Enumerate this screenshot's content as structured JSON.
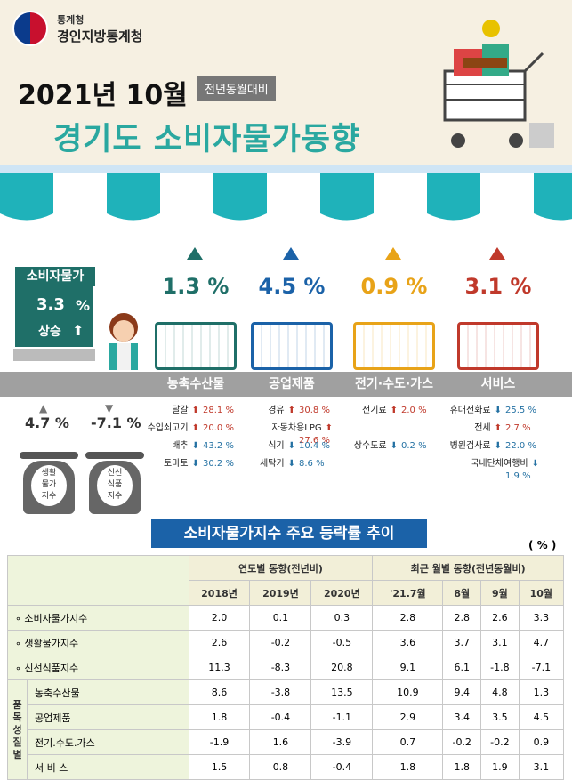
{
  "header": {
    "org_small": "통계청",
    "org_big": "경인지방통계청",
    "period": "2021년 10월",
    "badge": "전년동월대비",
    "title": "경기도 소비자물가동향"
  },
  "cpi": {
    "label": "소비자물가",
    "value": "3.3",
    "unit": "%",
    "direction": "상승"
  },
  "categories": [
    {
      "name": "농축수산물",
      "pct": "1.3 %",
      "color": "#1f6f68",
      "items": [
        [
          "달걀",
          "28.1 %",
          "up"
        ],
        [
          "수입쇠고기",
          "20.0 %",
          "up"
        ],
        [
          "배추",
          "43.2 %",
          "dn"
        ],
        [
          "토마토",
          "30.2 %",
          "dn"
        ]
      ]
    },
    {
      "name": "공업제품",
      "pct": "4.5 %",
      "color": "#1b62a8",
      "items": [
        [
          "경유",
          "30.8 %",
          "up"
        ],
        [
          "자동차용LPG",
          "27.6 %",
          "up"
        ],
        [
          "식기",
          "10.4 %",
          "dn"
        ],
        [
          "세탁기",
          "8.6 %",
          "dn"
        ]
      ]
    },
    {
      "name": "전기·수도·가스",
      "pct": "0.9 %",
      "color": "#e8a318",
      "items": [
        [
          "전기료",
          "2.0 %",
          "up"
        ],
        [
          "",
          ""
        ],
        [
          "상수도료",
          "0.2 %",
          "dn"
        ],
        [
          "",
          ""
        ]
      ]
    },
    {
      "name": "서비스",
      "pct": "3.1 %",
      "color": "#c0392b",
      "items": [
        [
          "휴대전화료",
          "25.5 %",
          "dn"
        ],
        [
          "전세",
          "2.7 %",
          "up"
        ],
        [
          "병원검사료",
          "22.0 %",
          "dn"
        ],
        [
          "국내단체여행비",
          "1.9 %",
          "dn"
        ]
      ]
    }
  ],
  "scales": [
    {
      "pct": "4.7 %",
      "label_lines": [
        "생활",
        "물가",
        "지수"
      ]
    },
    {
      "pct": "-7.1 %",
      "label_lines": [
        "신선",
        "식품",
        "지수"
      ]
    }
  ],
  "table": {
    "title": "소비자물가지수 주요 등락률 추이",
    "unit": "( % )",
    "group_yearly": "연도별 동향(전년비)",
    "group_monthly": "최근 월별 동향(전년동월비)",
    "cols": [
      "2018년",
      "2019년",
      "2020년",
      "'21.7월",
      "8월",
      "9월",
      "10월"
    ],
    "rows": [
      {
        "label": "∘ 소비자물가지수",
        "vals": [
          "2.0",
          "0.1",
          "0.3",
          "2.8",
          "2.8",
          "2.6",
          "3.3"
        ]
      },
      {
        "label": "∘ 생활물가지수",
        "vals": [
          "2.6",
          "-0.2",
          "-0.5",
          "3.6",
          "3.7",
          "3.1",
          "4.7"
        ]
      },
      {
        "label": "∘ 신선식품지수",
        "vals": [
          "11.3",
          "-8.3",
          "20.8",
          "9.1",
          "6.1",
          "-1.8",
          "-7.1"
        ]
      },
      {
        "label": "농축수산물",
        "vals": [
          "8.6",
          "-3.8",
          "13.5",
          "10.9",
          "9.4",
          "4.8",
          "1.3"
        ]
      },
      {
        "label": "공업제품",
        "vals": [
          "1.8",
          "-0.4",
          "-1.1",
          "2.9",
          "3.4",
          "3.5",
          "4.5"
        ]
      },
      {
        "label": "전기.수도.가스",
        "vals": [
          "-1.9",
          "1.6",
          "-3.9",
          "0.7",
          "-0.2",
          "-0.2",
          "0.9"
        ]
      },
      {
        "label": "서 비 스",
        "vals": [
          "1.5",
          "0.8",
          "-0.4",
          "1.8",
          "1.8",
          "1.9",
          "3.1"
        ]
      }
    ],
    "side_tag": "품목성질별"
  }
}
